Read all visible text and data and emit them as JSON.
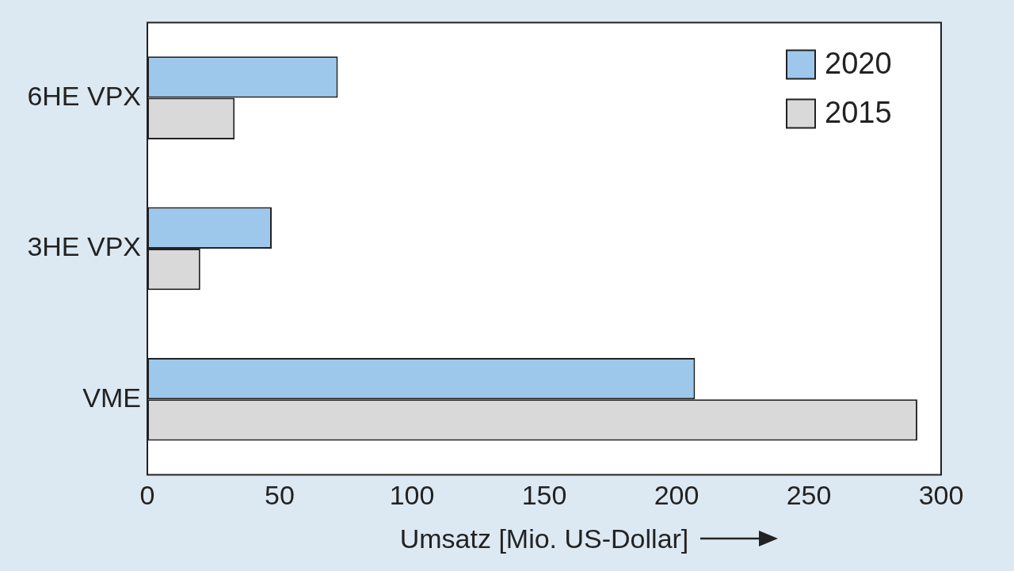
{
  "chart_data": {
    "type": "bar",
    "orientation": "horizontal",
    "xlabel": "Umsatz [Mio. US-Dollar]",
    "categories": [
      "6HE VPX",
      "3HE VPX",
      "VME"
    ],
    "series": [
      {
        "name": "2020",
        "color": "#9dc8ec",
        "values": [
          72,
          47,
          207
        ]
      },
      {
        "name": "2015",
        "color": "#d9d9d9",
        "values": [
          33,
          20,
          291
        ]
      }
    ],
    "xlim": [
      0,
      300
    ],
    "xticks": [
      0,
      50,
      100,
      150,
      200,
      250,
      300
    ],
    "grid": false,
    "legend": "top right"
  }
}
